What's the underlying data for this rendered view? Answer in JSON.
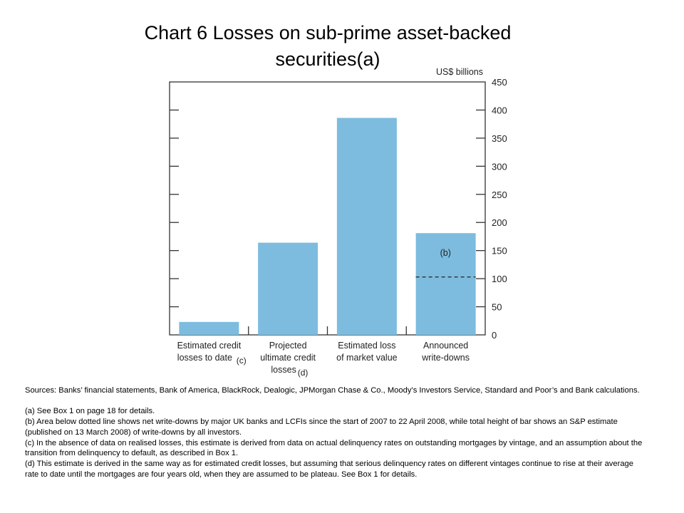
{
  "title_line1": "Chart 6  Losses on sub-prime asset-backed",
  "title_line2": "securities(a)",
  "chart_data": {
    "type": "bar",
    "ylabel": "US$ billions",
    "ylim": [
      0,
      450
    ],
    "yticks": [
      0,
      50,
      100,
      150,
      200,
      250,
      300,
      350,
      400,
      450
    ],
    "categories": [
      {
        "line1": "Estimated credit",
        "line2": "losses to date",
        "note": "(c)",
        "value": 23
      },
      {
        "line1": "Projected",
        "line2": "ultimate credit",
        "line3": "losses",
        "note": "(d)",
        "value": 164
      },
      {
        "line1": "Estimated loss",
        "line2": "of market value",
        "value": 386
      },
      {
        "line1": "Announced",
        "line2": "write-downs",
        "value": 181,
        "dotted_value": 103,
        "bar_note": "(b)"
      }
    ],
    "bar_color": "#7dbcde",
    "grid": false
  },
  "notes": {
    "sources": "Sources:  Banks’ financial statements, Bank of America, BlackRock, Dealogic, JPMorgan Chase & Co., Moody’s Investors Service, Standard and Poor’s and Bank calculations.",
    "a": "(a)  See Box 1 on page 18 for details.",
    "b": "(b)  Area below dotted line shows net write-downs by major UK banks and LCFIs since the start of 2007 to 22 April 2008,  while total height of bar shows an S&P estimate (published on 13 March 2008) of write-downs by all investors.",
    "c": "(c)  In the absence of data on realised losses, this estimate is derived from data on actual delinquency rates on outstanding mortgages by vintage, and an assumption about the transition from delinquency to default, as described in Box 1.",
    "d": "(d)  This estimate is derived in the same way as for estimated credit losses, but assuming that serious delinquency rates on different vintages continue to rise at their average rate to date until the mortgages are four years old, when they are assumed to be plateau.  See Box 1 for details."
  }
}
